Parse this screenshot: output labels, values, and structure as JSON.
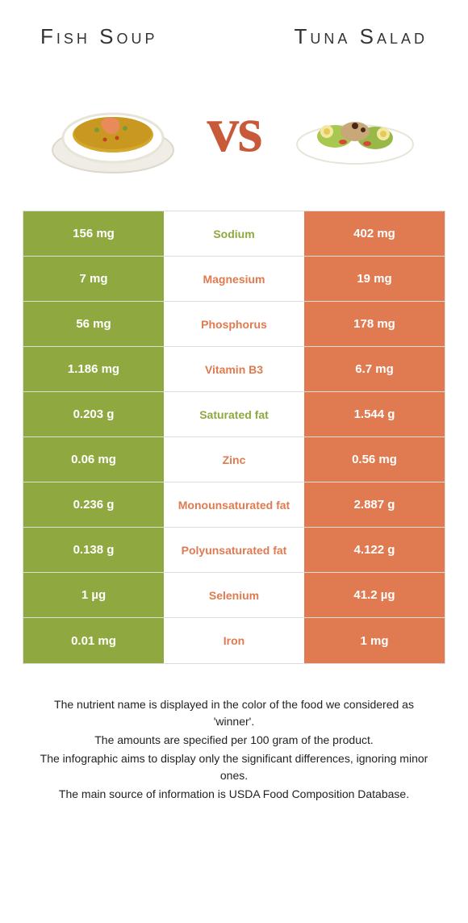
{
  "titles": {
    "left": "Fish soup",
    "right": "Tuna salad"
  },
  "vs": "vs",
  "colors": {
    "left": "#8fa83f",
    "right": "#e07a50",
    "leftText": "#8fa83f",
    "rightText": "#e07a50"
  },
  "rows": [
    {
      "left": "156 mg",
      "mid": "Sodium",
      "right": "402 mg",
      "winner": "left"
    },
    {
      "left": "7 mg",
      "mid": "Magnesium",
      "right": "19 mg",
      "winner": "right"
    },
    {
      "left": "56 mg",
      "mid": "Phosphorus",
      "right": "178 mg",
      "winner": "right"
    },
    {
      "left": "1.186 mg",
      "mid": "Vitamin B3",
      "right": "6.7 mg",
      "winner": "right"
    },
    {
      "left": "0.203 g",
      "mid": "Saturated fat",
      "right": "1.544 g",
      "winner": "left"
    },
    {
      "left": "0.06 mg",
      "mid": "Zinc",
      "right": "0.56 mg",
      "winner": "right"
    },
    {
      "left": "0.236 g",
      "mid": "Monounsaturated fat",
      "right": "2.887 g",
      "winner": "right"
    },
    {
      "left": "0.138 g",
      "mid": "Polyunsaturated fat",
      "right": "4.122 g",
      "winner": "right"
    },
    {
      "left": "1 µg",
      "mid": "Selenium",
      "right": "41.2 µg",
      "winner": "right"
    },
    {
      "left": "0.01 mg",
      "mid": "Iron",
      "right": "1 mg",
      "winner": "right"
    }
  ],
  "footer": [
    "The nutrient name is displayed in the color of the food we considered as 'winner'.",
    "The amounts are specified per 100 gram of the product.",
    "The infographic aims to display only the significant differences, ignoring minor ones.",
    "The main source of information is USDA Food Composition Database."
  ]
}
